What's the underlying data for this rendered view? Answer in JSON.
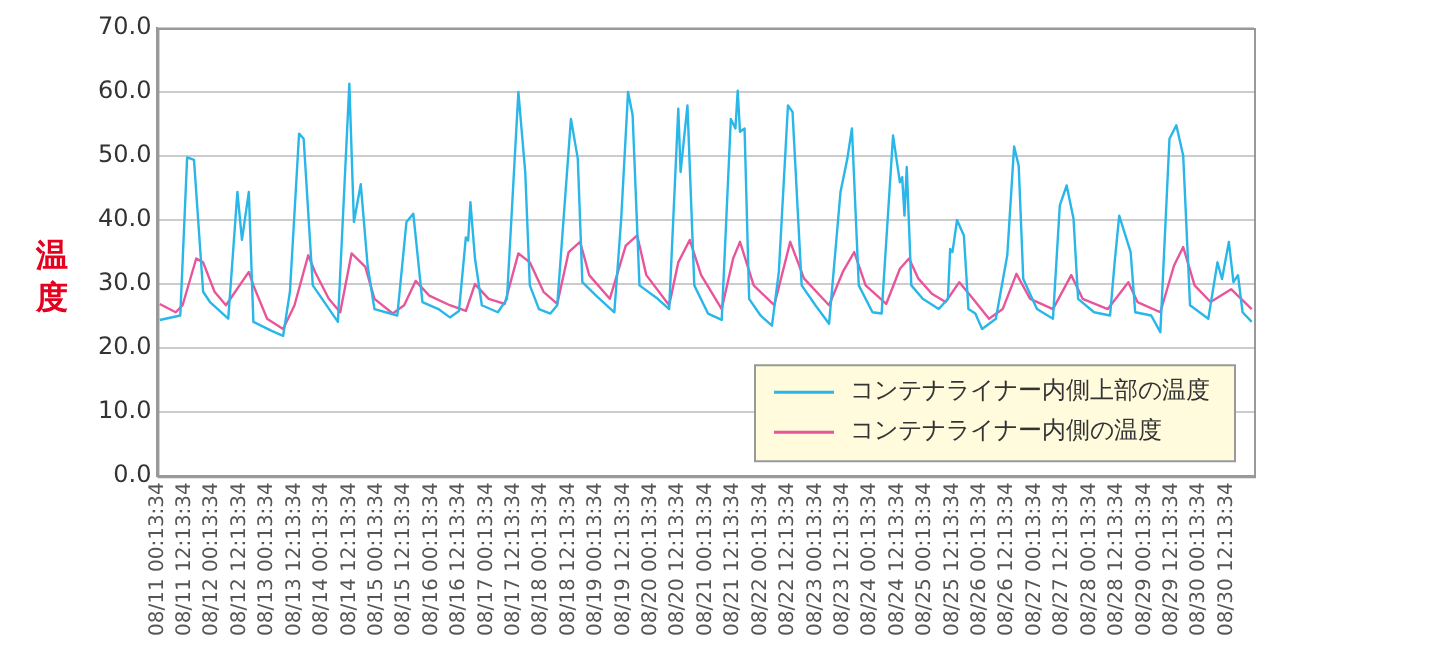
{
  "chart_data": {
    "type": "line",
    "ylabel": "温度",
    "legend": "bottom right",
    "grid": "y",
    "marker": "none",
    "line_style": "solid",
    "xlim": [
      "--08-11T00:13:34",
      "--08-31T00:13:34"
    ],
    "xticks": [
      {
        "value": "--08-11T00:13:34",
        "label": "08/11 00:13:34"
      },
      {
        "value": "--08-11T12:13:34",
        "label": "08/11 12:13:34"
      },
      {
        "value": "--08-12T00:13:34",
        "label": "08/12 00:13:34"
      },
      {
        "value": "--08-12T12:13:34",
        "label": "08/12 12:13:34"
      },
      {
        "value": "--08-13T00:13:34",
        "label": "08/13 00:13:34"
      },
      {
        "value": "--08-13T12:13:34",
        "label": "08/13 12:13:34"
      },
      {
        "value": "--08-14T00:13:34",
        "label": "08/14 00:13:34"
      },
      {
        "value": "--08-14T12:13:34",
        "label": "08/14 12:13:34"
      },
      {
        "value": "--08-15T00:13:34",
        "label": "08/15 00:13:34"
      },
      {
        "value": "--08-15T12:13:34",
        "label": "08/15 12:13:34"
      },
      {
        "value": "--08-16T00:13:34",
        "label": "08/16 00:13:34"
      },
      {
        "value": "--08-16T12:13:34",
        "label": "08/16 12:13:34"
      },
      {
        "value": "--08-17T00:13:34",
        "label": "08/17 00:13:34"
      },
      {
        "value": "--08-17T12:13:34",
        "label": "08/17 12:13:34"
      },
      {
        "value": "--08-18T00:13:34",
        "label": "08/18 00:13:34"
      },
      {
        "value": "--08-18T12:13:34",
        "label": "08/18 12:13:34"
      },
      {
        "value": "--08-19T00:13:34",
        "label": "08/19 00:13:34"
      },
      {
        "value": "--08-19T12:13:34",
        "label": "08/19 12:13:34"
      },
      {
        "value": "--08-20T00:13:34",
        "label": "08/20 00:13:34"
      },
      {
        "value": "--08-20T12:13:34",
        "label": "08/20 12:13:34"
      },
      {
        "value": "--08-21T00:13:34",
        "label": "08/21 00:13:34"
      },
      {
        "value": "--08-21T12:13:34",
        "label": "08/21 12:13:34"
      },
      {
        "value": "--08-22T00:13:34",
        "label": "08/22 00:13:34"
      },
      {
        "value": "--08-22T12:13:34",
        "label": "08/22 12:13:34"
      },
      {
        "value": "--08-23T00:13:34",
        "label": "08/23 00:13:34"
      },
      {
        "value": "--08-23T12:13:34",
        "label": "08/23 12:13:34"
      },
      {
        "value": "--08-24T00:13:34",
        "label": "08/24 00:13:34"
      },
      {
        "value": "--08-24T12:13:34",
        "label": "08/24 12:13:34"
      },
      {
        "value": "--08-25T00:13:34",
        "label": "08/25 00:13:34"
      },
      {
        "value": "--08-25T12:13:34",
        "label": "08/25 12:13:34"
      },
      {
        "value": "--08-26T00:13:34",
        "label": "08/26 00:13:34"
      },
      {
        "value": "--08-26T12:13:34",
        "label": "08/26 12:13:34"
      },
      {
        "value": "--08-27T00:13:34",
        "label": "08/27 00:13:34"
      },
      {
        "value": "--08-27T12:13:34",
        "label": "08/27 12:13:34"
      },
      {
        "value": "--08-28T00:13:34",
        "label": "08/28 00:13:34"
      },
      {
        "value": "--08-28T12:13:34",
        "label": "08/28 12:13:34"
      },
      {
        "value": "--08-29T00:13:34",
        "label": "08/29 00:13:34"
      },
      {
        "value": "--08-29T12:13:34",
        "label": "08/29 12:13:34"
      },
      {
        "value": "--08-30T00:13:34",
        "label": "08/30 00:13:34"
      },
      {
        "value": "--08-30T12:13:34",
        "label": "08/30 12:13:34"
      }
    ],
    "ylim": [
      0,
      70
    ],
    "yticks": [
      {
        "value": 0,
        "label": "0.0"
      },
      {
        "value": 10,
        "label": "10.0"
      },
      {
        "value": 20,
        "label": "20.0"
      },
      {
        "value": 30,
        "label": "30.0"
      },
      {
        "value": 40,
        "label": "40.0"
      },
      {
        "value": 50,
        "label": "50.0"
      },
      {
        "value": 60,
        "label": "60.0"
      },
      {
        "value": 70,
        "label": "70.0"
      }
    ],
    "series": [
      {
        "name": "コンテナライナー内側上部の温度",
        "color": "#29b6e8",
        "x": [
          "--08-11T01:13:34",
          "--08-11T10:13:34",
          "--08-11T13:13:34",
          "--08-11T16:13:34",
          "--08-11T20:13:34",
          "--08-11T23:13:34",
          "--08-12T07:13:34",
          "--08-12T11:13:34",
          "--08-12T13:13:34",
          "--08-12T16:13:34",
          "--08-12T18:13:34",
          "--08-13T02:13:34",
          "--08-13T07:13:34",
          "--08-13T10:13:34",
          "--08-13T14:13:34",
          "--08-13T16:13:34",
          "--08-13T20:13:34",
          "--08-14T07:13:34",
          "--08-14T12:13:34",
          "--08-14T14:13:34",
          "--08-14T17:13:34",
          "--08-14T20:13:34",
          "--08-14T23:13:34",
          "--08-15T09:13:34",
          "--08-15T13:13:34",
          "--08-15T16:13:34",
          "--08-15T20:13:34",
          "--08-16T03:13:34",
          "--08-16T08:13:34",
          "--08-16T12:13:34",
          "--08-16T15:13:34",
          "--08-16T16:13:34",
          "--08-16T17:13:34",
          "--08-16T19:13:34",
          "--08-16T22:13:34",
          "--08-17T05:13:34",
          "--08-17T09:13:34",
          "--08-17T14:13:34",
          "--08-17T17:13:34",
          "--08-17T19:13:34",
          "--08-17T23:13:34",
          "--08-18T04:13:34",
          "--08-18T07:13:34",
          "--08-18T13:13:34",
          "--08-18T16:13:34",
          "--08-18T18:13:34",
          "--08-19T00:13:34",
          "--08-19T08:13:34",
          "--08-19T11:13:34",
          "--08-19T14:13:34",
          "--08-19T16:13:34",
          "--08-19T19:13:34",
          "--08-20T03:13:34",
          "--08-20T08:13:34",
          "--08-20T12:13:34",
          "--08-20T13:13:34",
          "--08-20T16:13:34",
          "--08-20T19:13:34",
          "--08-21T01:13:34",
          "--08-21T07:13:34",
          "--08-21T11:13:34",
          "--08-21T13:13:34",
          "--08-21T14:13:34",
          "--08-21T15:13:34",
          "--08-21T17:13:34",
          "--08-21T19:13:34",
          "--08-22T00:13:34",
          "--08-22T05:13:34",
          "--08-22T08:13:34",
          "--08-22T12:13:34",
          "--08-22T14:13:34",
          "--08-22T18:13:34",
          "--08-23T00:13:34",
          "--08-23T06:13:34",
          "--08-23T11:13:34",
          "--08-23T14:13:34",
          "--08-23T16:13:34",
          "--08-23T19:13:34",
          "--08-24T01:13:34",
          "--08-24T05:13:34",
          "--08-24T10:13:34",
          "--08-24T13:13:34",
          "--08-24T14:13:34",
          "--08-24T15:13:34",
          "--08-24T16:13:34",
          "--08-24T18:13:34",
          "--08-24T23:13:34",
          "--08-25T06:13:34",
          "--08-25T10:13:34",
          "--08-25T11:13:34",
          "--08-25T12:13:34",
          "--08-25T14:13:34",
          "--08-25T17:13:34",
          "--08-25T19:13:34",
          "--08-25T22:13:34",
          "--08-26T01:13:34",
          "--08-26T07:13:34",
          "--08-26T12:13:34",
          "--08-26T15:13:34",
          "--08-26T17:13:34",
          "--08-26T19:13:34",
          "--08-27T01:13:34",
          "--08-27T08:13:34",
          "--08-27T11:13:34",
          "--08-27T14:13:34",
          "--08-27T17:13:34",
          "--08-27T19:13:34",
          "--08-28T02:13:34",
          "--08-28T09:13:34",
          "--08-28T11:13:34",
          "--08-28T13:13:34",
          "--08-28T18:13:34",
          "--08-28T20:13:34",
          "--08-29T03:13:34",
          "--08-29T07:13:34",
          "--08-29T11:13:34",
          "--08-29T14:13:34",
          "--08-29T17:13:34",
          "--08-29T20:13:34",
          "--08-30T04:13:34",
          "--08-30T08:13:34",
          "--08-30T10:13:34",
          "--08-30T13:13:34",
          "--08-30T15:13:34",
          "--08-30T17:13:34",
          "--08-30T19:13:34",
          "--08-30T23:13:34"
        ],
        "values": [
          24.4,
          25.1,
          49.8,
          49.4,
          28.8,
          27.2,
          24.6,
          44.4,
          36.9,
          44.4,
          24.1,
          22.7,
          21.9,
          28.8,
          53.5,
          52.7,
          29.8,
          24.1,
          61.3,
          39.7,
          45.6,
          32.9,
          26.1,
          25.1,
          39.7,
          41,
          27.2,
          26.1,
          24.8,
          25.8,
          37.3,
          36.8,
          42.8,
          34,
          26.7,
          25.6,
          27.7,
          60,
          47.5,
          29.8,
          26.1,
          25.4,
          26.7,
          55.8,
          49.6,
          30.3,
          28.2,
          25.6,
          40.2,
          60,
          56.4,
          29.8,
          27.7,
          26.1,
          57.4,
          47.5,
          57.9,
          29.8,
          25.4,
          24.4,
          55.8,
          54.3,
          60.2,
          53.8,
          54.3,
          27.7,
          25.1,
          23.5,
          31.9,
          57.9,
          56.9,
          29.8,
          26.7,
          23.8,
          44.4,
          49.6,
          54.3,
          29.8,
          25.6,
          25.4,
          53.2,
          45.9,
          46.7,
          40.7,
          48.3,
          29.8,
          27.7,
          26.1,
          27.7,
          35.5,
          35,
          40,
          37.6,
          26.1,
          25.4,
          23,
          24.6,
          34.5,
          51.5,
          48.5,
          30.8,
          26.1,
          24.6,
          42.3,
          45.4,
          40.2,
          27.7,
          25.6,
          25.1,
          33.4,
          40.7,
          35,
          25.6,
          25.1,
          22.5,
          52.7,
          54.8,
          50.1,
          26.7,
          24.6,
          33.4,
          30.8,
          36.6,
          30.3,
          31.4,
          25.6,
          24.1
        ]
      },
      {
        "name": "コンテナライナー内側の温度",
        "color": "#e8559a",
        "x": [
          "--08-11T01:13:34",
          "--08-11T08:13:34",
          "--08-11T11:13:34",
          "--08-11T17:13:34",
          "--08-11T20:13:34",
          "--08-12T01:13:34",
          "--08-12T06:13:34",
          "--08-12T16:13:34",
          "--08-12T18:13:34",
          "--08-13T00:13:34",
          "--08-13T07:13:34",
          "--08-13T12:13:34",
          "--08-13T18:13:34",
          "--08-13T21:13:34",
          "--08-14T03:13:34",
          "--08-14T08:13:34",
          "--08-14T13:13:34",
          "--08-14T19:13:34",
          "--08-14T23:13:34",
          "--08-15T07:13:34",
          "--08-15T12:13:34",
          "--08-15T17:13:34",
          "--08-15T23:13:34",
          "--08-16T08:13:34",
          "--08-16T15:13:34",
          "--08-16T19:13:34",
          "--08-17T01:13:34",
          "--08-17T08:13:34",
          "--08-17T14:13:34",
          "--08-17T19:13:34",
          "--08-18T01:13:34",
          "--08-18T07:13:34",
          "--08-18T12:13:34",
          "--08-18T17:13:34",
          "--08-18T21:13:34",
          "--08-19T06:13:34",
          "--08-19T13:13:34",
          "--08-19T18:13:34",
          "--08-19T22:13:34",
          "--08-20T08:13:34",
          "--08-20T12:13:34",
          "--08-20T17:13:34",
          "--08-20T22:13:34",
          "--08-21T07:13:34",
          "--08-21T12:13:34",
          "--08-21T15:13:34",
          "--08-21T21:13:34",
          "--08-22T06:13:34",
          "--08-22T13:13:34",
          "--08-22T19:13:34",
          "--08-23T06:13:34",
          "--08-23T12:13:34",
          "--08-23T17:13:34",
          "--08-23T22:13:34",
          "--08-24T07:13:34",
          "--08-24T13:13:34",
          "--08-24T17:13:34",
          "--08-24T21:13:34",
          "--08-25T03:13:34",
          "--08-25T09:13:34",
          "--08-25T15:13:34",
          "--08-25T21:13:34",
          "--08-26T04:13:34",
          "--08-26T10:13:34",
          "--08-26T16:13:34",
          "--08-26T22:13:34",
          "--08-27T08:13:34",
          "--08-27T16:13:34",
          "--08-27T21:13:34",
          "--08-28T08:13:34",
          "--08-28T17:13:34",
          "--08-28T21:13:34",
          "--08-29T07:13:34",
          "--08-29T13:13:34",
          "--08-29T17:13:34",
          "--08-29T22:13:34",
          "--08-30T05:13:34",
          "--08-30T14:13:34",
          "--08-30T23:13:34"
        ],
        "values": [
          26.9,
          25.6,
          26.7,
          34,
          33.4,
          28.8,
          26.7,
          31.9,
          29.8,
          24.6,
          23,
          26.7,
          34.5,
          31.9,
          27.7,
          25.6,
          34.8,
          32.7,
          27.7,
          25.4,
          26.7,
          30.5,
          28.2,
          26.7,
          25.8,
          30,
          27.7,
          26.9,
          34.8,
          33.4,
          28.8,
          26.9,
          35,
          36.6,
          31.4,
          27.7,
          36,
          37.6,
          31.4,
          26.7,
          33.4,
          36.9,
          31.4,
          26.1,
          34,
          36.6,
          29.8,
          26.7,
          36.6,
          30.9,
          26.7,
          31.9,
          35,
          29.8,
          26.9,
          32.4,
          34,
          30.9,
          28.5,
          27.2,
          30.3,
          27.7,
          24.6,
          26.1,
          31.6,
          27.7,
          26.1,
          31.4,
          27.7,
          26.1,
          30.3,
          27.2,
          25.6,
          32.9,
          35.8,
          29.8,
          27.2,
          29.2,
          26.1
        ]
      }
    ]
  }
}
